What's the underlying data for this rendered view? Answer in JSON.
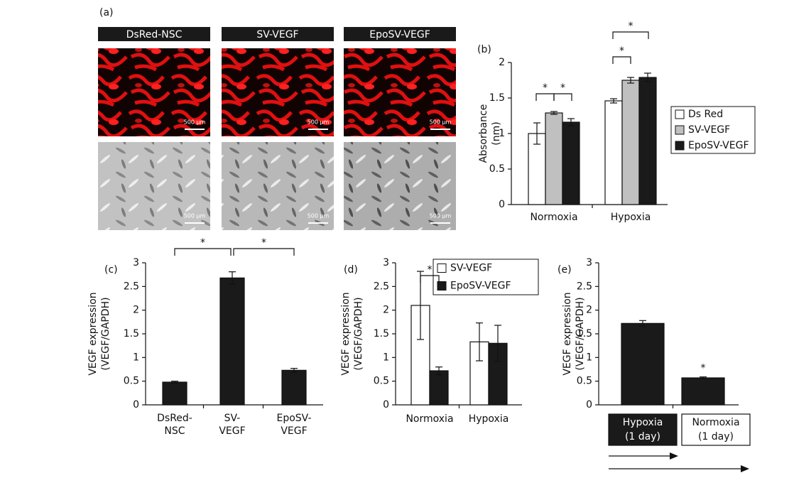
{
  "panel_a": {
    "label": "(a)",
    "columns": [
      "DsRed-NSC",
      "SV-VEGF",
      "EpoSV-VEGF"
    ],
    "scale_bar": "500 µm"
  },
  "chart_data": [
    {
      "type": "bar",
      "panel": "(b)",
      "ylabel": "Absorbance (nm)",
      "categories": [
        "Normoxia",
        "Hypoxia"
      ],
      "series": [
        {
          "name": "Ds Red",
          "color": "#ffffff",
          "values": [
            1.0,
            1.46
          ],
          "errors": [
            0.15,
            0.03
          ]
        },
        {
          "name": "SV-VEGF",
          "color": "#c0c0c0",
          "values": [
            1.29,
            1.75
          ],
          "errors": [
            0.02,
            0.04
          ]
        },
        {
          "name": "EpoSV-VEGF",
          "color": "#1a1a1a",
          "values": [
            1.16,
            1.79
          ],
          "errors": [
            0.05,
            0.06
          ]
        }
      ],
      "ylim": [
        0,
        2
      ],
      "yticks": [
        0,
        0.5,
        1,
        1.5,
        2
      ],
      "annotations": [
        "*",
        "*",
        "*",
        "*"
      ]
    },
    {
      "type": "bar",
      "panel": "(c)",
      "ylabel": "VEGF expression (VEGF/GAPDH)",
      "categories": [
        "DsRed-NSC",
        "SV-VEGF",
        "EpoSV-VEGF"
      ],
      "values": [
        0.48,
        2.68,
        0.73
      ],
      "errors": [
        0.02,
        0.13,
        0.04
      ],
      "color": "#1a1a1a",
      "ylim": [
        0,
        3
      ],
      "yticks": [
        0,
        0.5,
        1,
        1.5,
        2,
        2.5,
        3
      ],
      "annotations": [
        "*",
        "*"
      ]
    },
    {
      "type": "bar",
      "panel": "(d)",
      "ylabel": "VEGF expression (VEGF/GAPDH)",
      "categories": [
        "Normoxia",
        "Hypoxia"
      ],
      "series": [
        {
          "name": "SV-VEGF",
          "color": "#ffffff",
          "values": [
            2.1,
            1.33
          ],
          "errors": [
            0.72,
            0.4
          ]
        },
        {
          "name": "EpoSV-VEGF",
          "color": "#1a1a1a",
          "values": [
            0.72,
            1.3
          ],
          "errors": [
            0.08,
            0.38
          ]
        }
      ],
      "ylim": [
        0,
        3
      ],
      "yticks": [
        0,
        0.5,
        1,
        1.5,
        2,
        2.5,
        3
      ],
      "annotations": [
        "*"
      ]
    },
    {
      "type": "bar",
      "panel": "(e)",
      "ylabel": "VEGF expression (VEGF/GAPDH)",
      "categories": [
        "Hypoxia (1 day)",
        "Normoxia (1 day)"
      ],
      "values": [
        1.72,
        0.57
      ],
      "errors": [
        0.06,
        0.02
      ],
      "color": "#1a1a1a",
      "ylim": [
        0,
        3
      ],
      "yticks": [
        0,
        0.5,
        1,
        1.5,
        2,
        2.5,
        3
      ],
      "annotations": [
        "*"
      ]
    }
  ]
}
